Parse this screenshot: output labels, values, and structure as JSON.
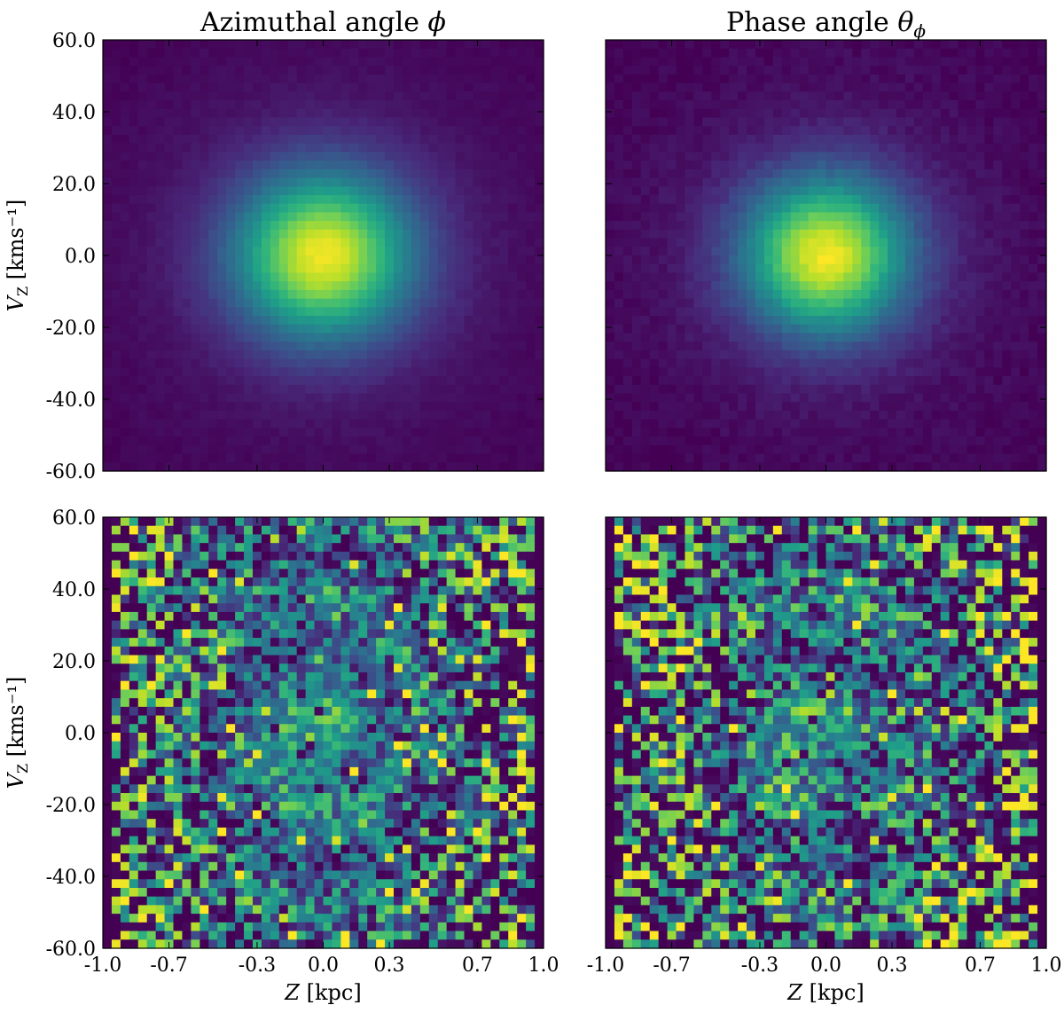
{
  "chart_data": [
    {
      "type": "heatmap",
      "id": "top-left",
      "title": "Azimuthal angle ϕ",
      "ylabel": "V_Z [kms⁻¹]",
      "xlabel": "",
      "xlim": [
        -1.0,
        1.0
      ],
      "ylim": [
        -60.0,
        60.0
      ],
      "bins": [
        50,
        50
      ],
      "pattern": "smooth",
      "peak": {
        "x": 0.0,
        "y": 0.0
      },
      "spread": {
        "x": 0.28,
        "y": 16.0
      },
      "noise": 0.03,
      "seed": 11,
      "colormap": "viridis",
      "yticks": [
        "60.0",
        "40.0",
        "20.0",
        "0.0",
        "-20.0",
        "-40.0",
        "-60.0"
      ],
      "xticks": []
    },
    {
      "type": "heatmap",
      "id": "top-right",
      "title": "Phase angle θ",
      "title_sub": "ϕ",
      "ylabel": "",
      "xlabel": "",
      "xlim": [
        -1.0,
        1.0
      ],
      "ylim": [
        -60.0,
        60.0
      ],
      "bins": [
        50,
        50
      ],
      "pattern": "smooth",
      "peak": {
        "x": 0.0,
        "y": 0.0
      },
      "spread": {
        "x": 0.26,
        "y": 15.0
      },
      "noise": 0.05,
      "seed": 23,
      "colormap": "viridis",
      "yticks": [],
      "xticks": []
    },
    {
      "type": "heatmap",
      "id": "bottom-left",
      "title": "",
      "ylabel": "V_Z [kms⁻¹]",
      "xlabel": "Z [kpc]",
      "xlim": [
        -1.0,
        1.0
      ],
      "ylim": [
        -60.0,
        60.0
      ],
      "bins": [
        50,
        50
      ],
      "pattern": "spiral",
      "peak": {
        "x": 0.0,
        "y": 0.0
      },
      "spread": {
        "x": 0.2,
        "y": 12.0
      },
      "noise": 0.35,
      "seed": 37,
      "colormap": "viridis",
      "yticks": [
        "60.0",
        "40.0",
        "20.0",
        "0.0",
        "-20.0",
        "-40.0",
        "-60.0"
      ],
      "xticks": [
        "-1.0",
        "-0.7",
        "-0.3",
        "0.0",
        "0.3",
        "0.7",
        "1.0"
      ]
    },
    {
      "type": "heatmap",
      "id": "bottom-right",
      "title": "",
      "ylabel": "",
      "xlabel": "Z [kpc]",
      "xlim": [
        -1.0,
        1.0
      ],
      "ylim": [
        -60.0,
        60.0
      ],
      "bins": [
        50,
        50
      ],
      "pattern": "spiral",
      "peak": {
        "x": 0.0,
        "y": 0.0
      },
      "spread": {
        "x": 0.2,
        "y": 12.0
      },
      "noise": 0.45,
      "seed": 53,
      "colormap": "viridis",
      "yticks": [],
      "xticks": [
        "-1.0",
        "-0.7",
        "-0.3",
        "0.0",
        "0.3",
        "0.7",
        "1.0"
      ]
    }
  ],
  "colors": {
    "viridis_low": "#440154",
    "viridis_mid": "#21918c",
    "viridis_high": "#fde725"
  }
}
